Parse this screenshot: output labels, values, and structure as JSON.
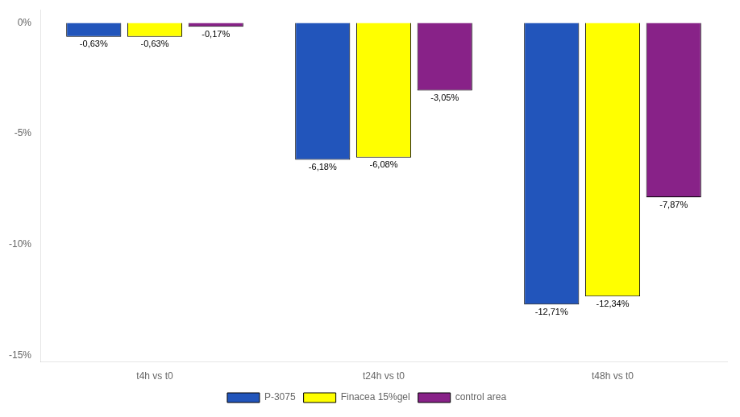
{
  "chart_data": {
    "type": "bar",
    "categories": [
      "t4h vs t0",
      "t24h vs t0",
      "t48h vs t0"
    ],
    "series": [
      {
        "name": "P-3075",
        "color": "#2255BB",
        "values": [
          -0.63,
          -6.18,
          -12.71
        ],
        "value_labels": [
          "-0,63%",
          "-6,18%",
          "-12,71%"
        ]
      },
      {
        "name": "Finacea 15%gel",
        "color": "#FFFF00",
        "values": [
          -0.63,
          -6.08,
          -12.34
        ],
        "value_labels": [
          "-0,63%",
          "-6,08%",
          "-12,34%"
        ]
      },
      {
        "name": "control area",
        "color": "#882288",
        "values": [
          -0.17,
          -3.05,
          -7.87
        ],
        "value_labels": [
          "-0,17%",
          "-3,05%",
          "-7,87%"
        ]
      }
    ],
    "ylim": [
      -15.3,
      0.6
    ],
    "yticks": [
      {
        "value": 0,
        "label": "0%"
      },
      {
        "value": -5,
        "label": "-5%"
      },
      {
        "value": -10,
        "label": "-10%"
      },
      {
        "value": -15,
        "label": "-15%"
      }
    ],
    "grid": false,
    "legend": "bottom",
    "data_labels": true
  }
}
